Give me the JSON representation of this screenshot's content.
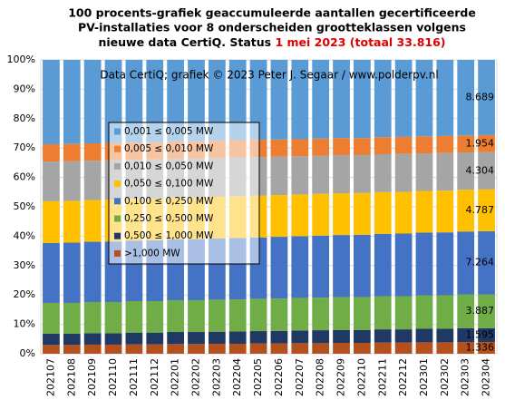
{
  "chart_data": {
    "type": "stacked_bar_percent",
    "title_lines": [
      "100 procents-grafiek geaccumuleerde aantallen gecertificeerde",
      "PV-installaties voor 8 onderscheiden grootteklassen volgens",
      "nieuwe data CertiQ. Status"
    ],
    "title_highlight": "1 mei 2023 (totaal 33.816)",
    "title_highlight_color": "#e00000",
    "annotation": "Data CertiQ; grafiek © 2023 Peter J. Segaar / www.polderpv.nl",
    "categories": [
      "202107",
      "202108",
      "202109",
      "202110",
      "202111",
      "202112",
      "202201",
      "202202",
      "202203",
      "202204",
      "202205",
      "202206",
      "202207",
      "202208",
      "202209",
      "202210",
      "202211",
      "202212",
      "202301",
      "202302",
      "202303",
      "202304"
    ],
    "series": [
      {
        "name": ">1,000 MW",
        "color": "#b4501e",
        "count_label": "1.336",
        "values": [
          3.0,
          3.0,
          3.1,
          3.1,
          3.2,
          3.2,
          3.3,
          3.3,
          3.4,
          3.4,
          3.5,
          3.5,
          3.6,
          3.6,
          3.7,
          3.7,
          3.8,
          3.8,
          3.9,
          3.9,
          4.0,
          4.0
        ]
      },
      {
        "name": "0,500 ≤  1,000 MW",
        "color": "#1f3864",
        "count_label": "1.595",
        "values": [
          3.8,
          3.8,
          3.9,
          3.9,
          4.0,
          4.0,
          4.1,
          4.1,
          4.1,
          4.2,
          4.2,
          4.3,
          4.3,
          4.4,
          4.4,
          4.4,
          4.5,
          4.5,
          4.6,
          4.6,
          4.7,
          4.7
        ]
      },
      {
        "name": "0,250 ≤  0,500 MW",
        "color": "#70ad47",
        "count_label": "3.887",
        "values": [
          10.5,
          10.5,
          10.6,
          10.6,
          10.7,
          10.7,
          10.8,
          10.8,
          10.9,
          10.9,
          11.0,
          11.0,
          11.1,
          11.1,
          11.2,
          11.2,
          11.3,
          11.3,
          11.4,
          11.4,
          11.5,
          11.5
        ]
      },
      {
        "name": "0,100 ≤  0,250 MW",
        "color": "#4472c4",
        "count_label": "7.264",
        "values": [
          20.4,
          20.5,
          20.5,
          20.6,
          20.6,
          20.7,
          20.7,
          20.8,
          20.8,
          20.9,
          20.9,
          21.0,
          21.0,
          21.1,
          21.1,
          21.2,
          21.2,
          21.3,
          21.3,
          21.4,
          21.4,
          21.5
        ]
      },
      {
        "name": "0,050 ≤  0,100 MW",
        "color": "#ffc000",
        "count_label": "4.787",
        "values": [
          14.2,
          14.2,
          14.2,
          14.2,
          14.2,
          14.2,
          14.2,
          14.2,
          14.2,
          14.2,
          14.2,
          14.2,
          14.2,
          14.2,
          14.2,
          14.2,
          14.2,
          14.2,
          14.2,
          14.2,
          14.2,
          14.2
        ]
      },
      {
        "name": "0,010 ≤  0,050 MW",
        "color": "#a5a5a5",
        "count_label": "4.304",
        "values": [
          13.5,
          13.5,
          13.4,
          13.4,
          13.3,
          13.3,
          13.3,
          13.2,
          13.2,
          13.2,
          13.1,
          13.1,
          13.0,
          13.0,
          13.0,
          12.9,
          12.9,
          12.9,
          12.8,
          12.8,
          12.7,
          12.7
        ]
      },
      {
        "name": "0,005 ≤  0,010 MW",
        "color": "#ed7d31",
        "count_label": "1.954",
        "values": [
          5.9,
          5.9,
          5.9,
          5.9,
          5.9,
          5.9,
          5.9,
          5.9,
          5.9,
          5.9,
          5.9,
          5.8,
          5.8,
          5.8,
          5.8,
          5.8,
          5.8,
          5.8,
          5.8,
          5.8,
          5.8,
          5.8
        ]
      },
      {
        "name": "0,001 ≤  0,005 MW",
        "color": "#5b9bd5",
        "count_label": "8.689",
        "values": [
          28.7,
          28.6,
          28.4,
          28.3,
          28.1,
          28.0,
          27.7,
          27.7,
          27.5,
          27.3,
          27.2,
          27.1,
          27.0,
          26.8,
          26.6,
          26.6,
          26.3,
          26.2,
          26.0,
          25.9,
          25.7,
          25.6
        ]
      }
    ],
    "ylim": [
      0,
      100
    ],
    "yticks": [
      {
        "value": 0,
        "label": "0%"
      },
      {
        "value": 10,
        "label": "10%"
      },
      {
        "value": 20,
        "label": "20%"
      },
      {
        "value": 30,
        "label": "30%"
      },
      {
        "value": 40,
        "label": "40%"
      },
      {
        "value": 50,
        "label": "50%"
      },
      {
        "value": 60,
        "label": "60%"
      },
      {
        "value": 70,
        "label": "70%"
      },
      {
        "value": 80,
        "label": "80%"
      },
      {
        "value": 90,
        "label": "90%"
      },
      {
        "value": 100,
        "label": "100%"
      }
    ],
    "grid": true,
    "legend": "upper left"
  }
}
